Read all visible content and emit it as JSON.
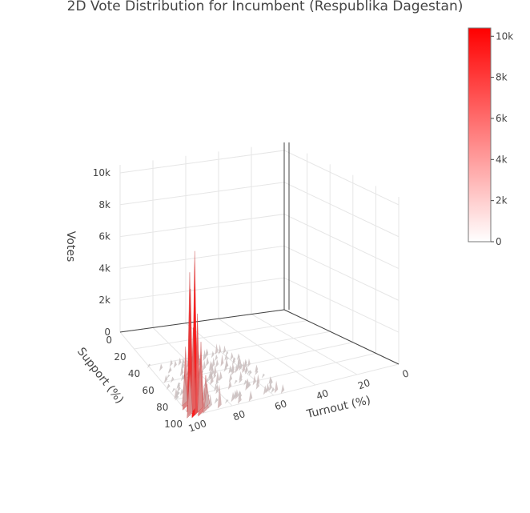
{
  "chart_data": {
    "type": "surface",
    "title": "2D Vote Distribution for Incumbent (Respublika Dagestan)",
    "xlabel": "Turnout (%)",
    "ylabel": "Support (%)",
    "zlabel": "Votes",
    "x_ticks": [
      "0",
      "20",
      "40",
      "60",
      "80",
      "100"
    ],
    "y_ticks": [
      "0",
      "20",
      "40",
      "60",
      "80",
      "100"
    ],
    "z_ticks": [
      "0",
      "2k",
      "4k",
      "6k",
      "8k",
      "10k"
    ],
    "xlim": [
      0,
      100
    ],
    "ylim": [
      0,
      100
    ],
    "zlim": [
      0,
      10500
    ],
    "colorbar": {
      "ticks": [
        "0",
        "2k",
        "4k",
        "6k",
        "8k",
        "10k"
      ],
      "range": [
        0,
        10400
      ],
      "colorscale": [
        "#ffffff",
        "#ff0000"
      ]
    },
    "peaks": [
      {
        "x": 98,
        "y": 100,
        "z": 10300
      },
      {
        "x": 98,
        "y": 93,
        "z": 8600
      },
      {
        "x": 99,
        "y": 97,
        "z": 7800
      },
      {
        "x": 96,
        "y": 98,
        "z": 6200
      },
      {
        "x": 97,
        "y": 95,
        "z": 5200
      },
      {
        "x": 95,
        "y": 100,
        "z": 4500
      },
      {
        "x": 99,
        "y": 90,
        "z": 3800
      },
      {
        "x": 94,
        "y": 96,
        "z": 3200
      },
      {
        "x": 100,
        "y": 99,
        "z": 2800
      },
      {
        "x": 92,
        "y": 98,
        "z": 2200
      },
      {
        "x": 98,
        "y": 86,
        "z": 1800
      },
      {
        "x": 90,
        "y": 94,
        "z": 1400
      }
    ],
    "grid": true
  }
}
